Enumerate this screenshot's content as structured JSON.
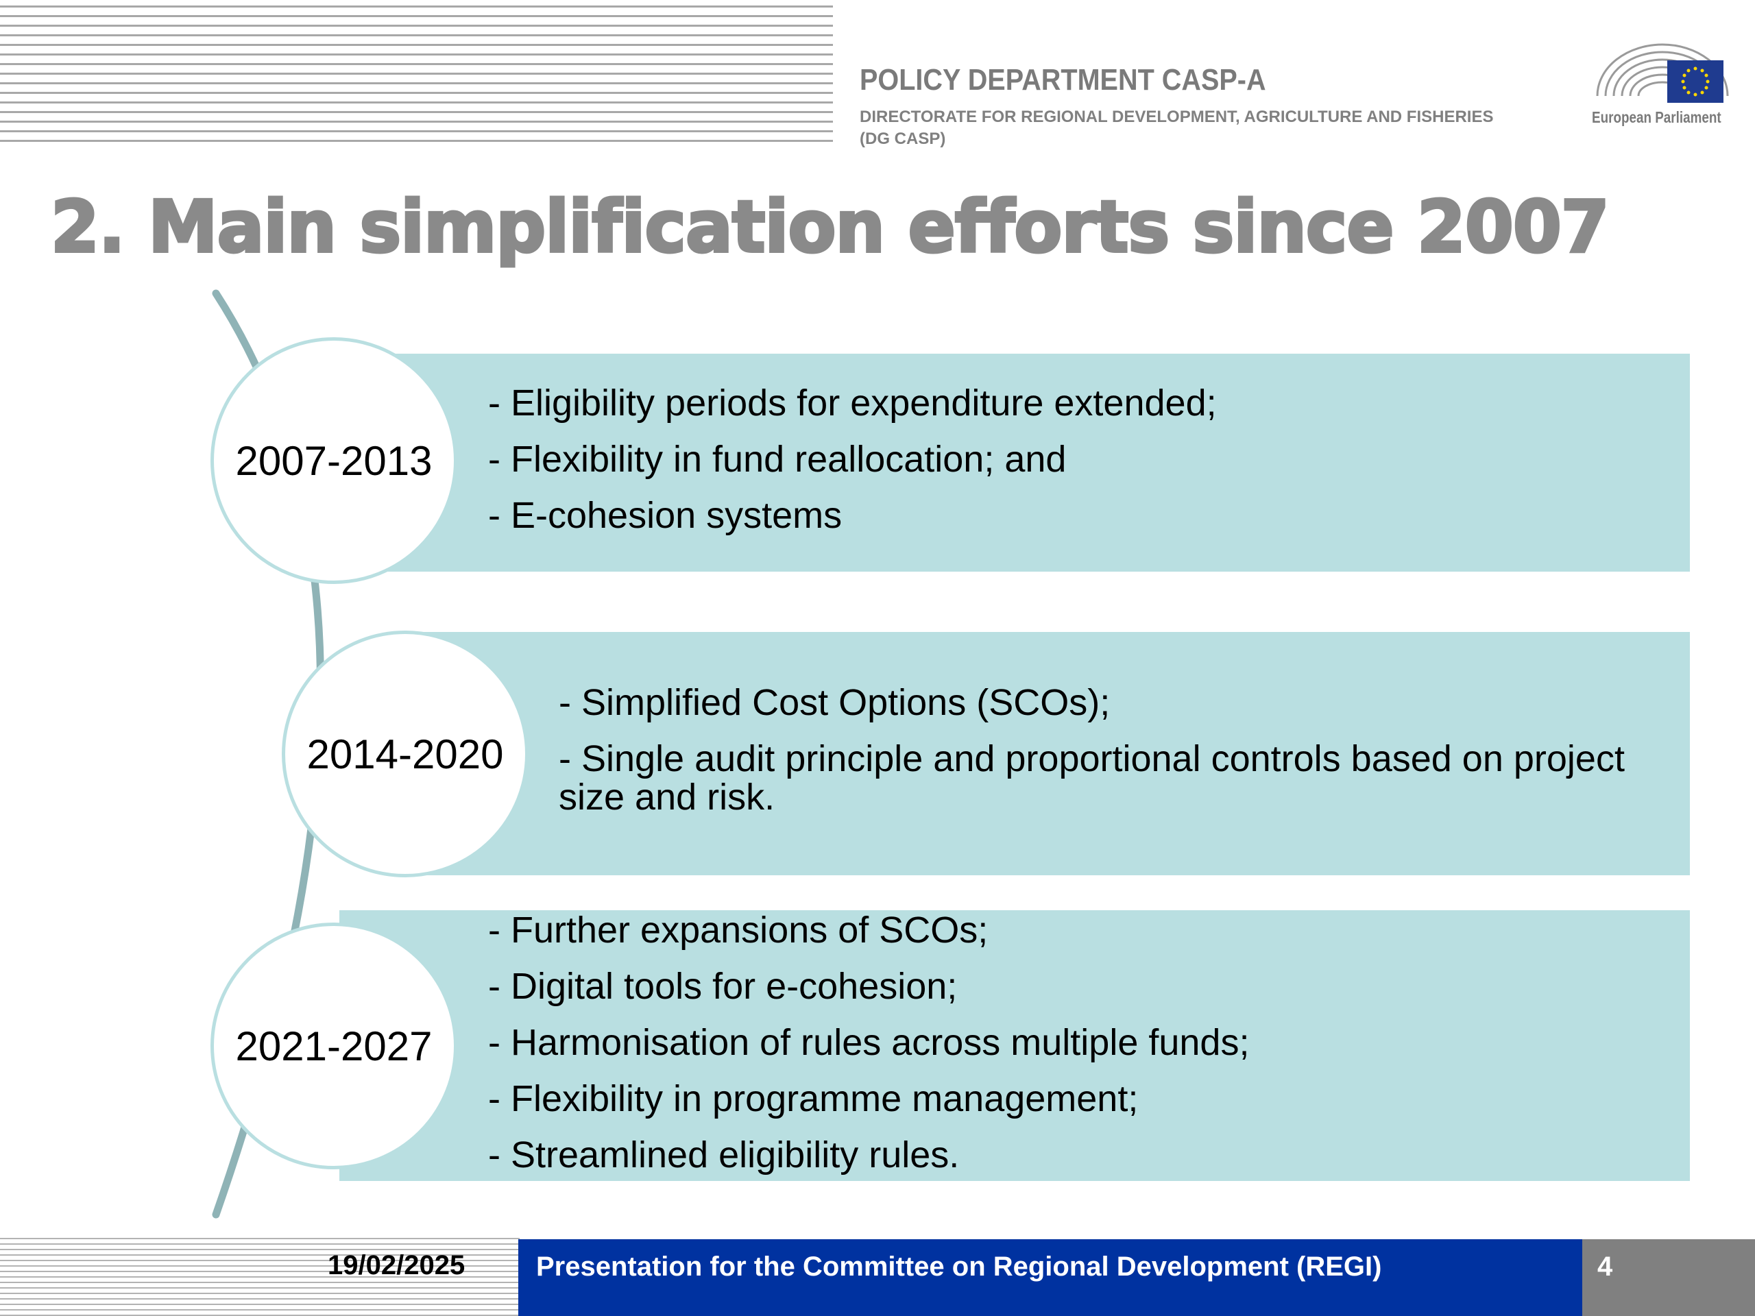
{
  "header": {
    "department": "POLICY DEPARTMENT  CASP-A",
    "directorate": "DIRECTORATE FOR REGIONAL DEVELOPMENT, AGRICULTURE AND FISHERIES\n(DG CASP)",
    "logo_text": "European Parliament",
    "logo_icon": "european-parliament-hemicycle-flag-icon"
  },
  "slide": {
    "title": "2. Main simplification efforts since 2007"
  },
  "periods": [
    {
      "label": "2007-2013",
      "items": [
        "- Eligibility periods for expenditure extended;",
        "- Flexibility in fund reallocation; and",
        "- E-cohesion systems"
      ]
    },
    {
      "label": "2014-2020",
      "items": [
        "-  Simplified Cost Options (SCOs);",
        "- Single audit principle and proportional controls based on project size and risk."
      ]
    },
    {
      "label": "2021-2027",
      "items": [
        "- Further expansions of SCOs;",
        "- Digital tools for e-cohesion;",
        "- Harmonisation of rules across multiple funds;",
        "- Flexibility in programme management;",
        "- Streamlined eligibility rules."
      ]
    }
  ],
  "footer": {
    "date": "19/02/2025",
    "presentation": "Presentation for the Committee on Regional Development (REGI)",
    "page_number": "4"
  },
  "colors": {
    "band": "#b9dfe1",
    "arc": "#8fb3b6",
    "title": "#8a8a8a",
    "footer_blue": "#0032a0",
    "footer_grey": "#808080"
  }
}
